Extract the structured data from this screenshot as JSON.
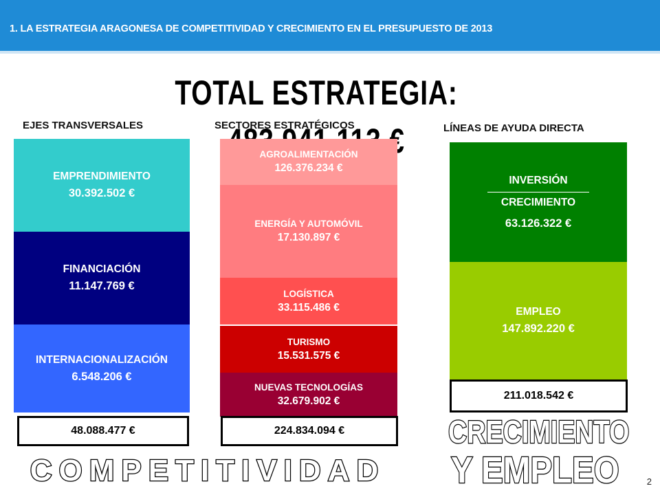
{
  "header": {
    "title": "1. LA ESTRATEGIA ARAGONESA DE COMPETITIVIDAD Y CRECIMIENTO EN EL PRESUPUESTO DE 2013"
  },
  "total": "TOTAL ESTRATEGIA: 483.941.113 €",
  "ejes": {
    "heading": "EJES TRANSVERSALES",
    "items": [
      {
        "label": "EMPRENDIMIENTO",
        "amount": "30.392.502 €"
      },
      {
        "label": "FINANCIACIÓN",
        "amount": "11.147.769 €"
      },
      {
        "label": "INTERNACIONALIZACIÓN",
        "amount": "6.548.206 €"
      }
    ],
    "total": "48.088.477 €"
  },
  "sectores": {
    "heading": "SECTORES ESTRATÉGICOS",
    "items": [
      {
        "label": "AGROALIMENTACIÓN",
        "amount": "126.376.234 €"
      },
      {
        "label": "ENERGÍA Y AUTOMÓVIL",
        "amount": "17.130.897 €"
      },
      {
        "label": "LOGÍSTICA",
        "amount": "33.115.486 €"
      },
      {
        "label": "TURISMO",
        "amount": "15.531.575 €"
      },
      {
        "label": "NUEVAS TECNOLOGÍAS",
        "amount": "32.679.902 €"
      }
    ],
    "total": "224.834.094 €"
  },
  "lineas": {
    "heading": "LÍNEAS DE AYUDA DIRECTA",
    "inversion": {
      "line1": "INVERSIÓN",
      "line2": "CRECIMIENTO",
      "amount": "63.126.322 €"
    },
    "empleo": {
      "label": "EMPLEO",
      "amount": "147.892.220 €"
    },
    "total": "211.018.542 €"
  },
  "footer": {
    "competitividad": "COMPETITIVIDAD",
    "crecimiento": "CRECIMIENTO",
    "y_empleo": "Y EMPLEO",
    "page": "2"
  },
  "colors": {
    "header": "#1f8bd6",
    "emprendimiento": "#33cccc",
    "financiacion": "#000080",
    "internacionalizacion": "#3366ff",
    "agroalimentacion": "#ff9999",
    "energia": "#ff7c80",
    "logistica": "#ff5050",
    "turismo": "#cc0000",
    "nuevas_tecnologias": "#990033",
    "inversion": "#008000",
    "empleo": "#99cc00"
  }
}
